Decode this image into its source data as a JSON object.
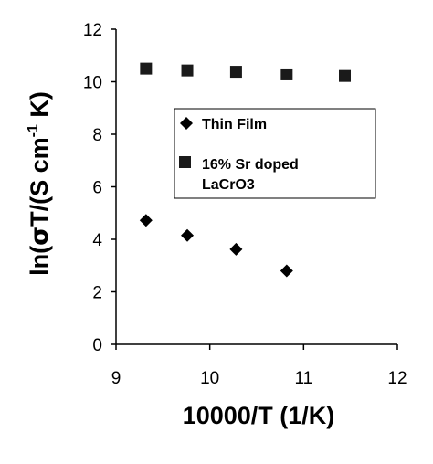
{
  "chart_data": {
    "type": "scatter",
    "xlabel": "10000/T (1/K)",
    "ylabel": {
      "prefix": "ln(",
      "sigma": "σ",
      "mid": "T/(S cm",
      "sup": "-1",
      "suffix": " K)"
    },
    "xlim": [
      9,
      12
    ],
    "ylim": [
      0,
      12
    ],
    "x_ticks": [
      9,
      10,
      11,
      12
    ],
    "y_ticks": [
      0,
      2,
      4,
      6,
      8,
      10,
      12
    ],
    "x_tick_labels": [
      "9",
      "10",
      "11",
      "12"
    ],
    "y_tick_labels": [
      "0",
      "2",
      "4",
      "6",
      "8",
      "10",
      "12"
    ],
    "grid": false,
    "legend_position": "inside-right",
    "series": [
      {
        "name": "Thin Film",
        "marker": "diamond",
        "color": "#000000",
        "x": [
          9.32,
          9.76,
          10.28,
          10.82
        ],
        "y": [
          4.72,
          4.15,
          3.62,
          2.8
        ]
      },
      {
        "name": "16% Sr doped LaCrO3",
        "name_lines": [
          "16% Sr doped",
          "LaCrO3"
        ],
        "marker": "square",
        "color": "#1a1a1a",
        "x": [
          9.32,
          9.76,
          10.28,
          10.82,
          11.44
        ],
        "y": [
          10.5,
          10.43,
          10.38,
          10.28,
          10.22
        ]
      }
    ]
  }
}
